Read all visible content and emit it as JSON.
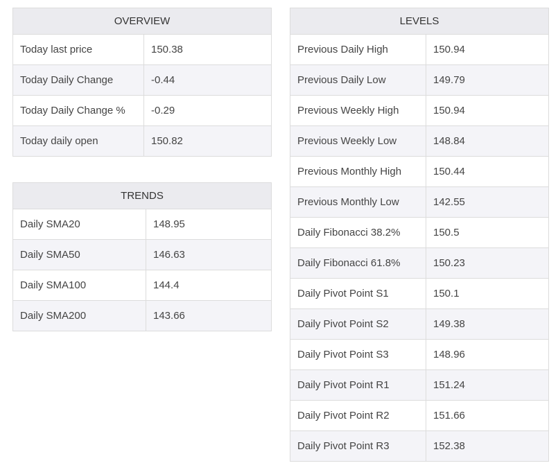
{
  "overview": {
    "title": "OVERVIEW",
    "rows": [
      {
        "label": "Today last price",
        "value": "150.38"
      },
      {
        "label": "Today Daily Change",
        "value": "-0.44"
      },
      {
        "label": "Today Daily Change %",
        "value": "-0.29"
      },
      {
        "label": "Today daily open",
        "value": "150.82"
      }
    ]
  },
  "trends": {
    "title": "TRENDS",
    "rows": [
      {
        "label": "Daily SMA20",
        "value": "148.95"
      },
      {
        "label": "Daily SMA50",
        "value": "146.63"
      },
      {
        "label": "Daily SMA100",
        "value": "144.4"
      },
      {
        "label": "Daily SMA200",
        "value": "143.66"
      }
    ]
  },
  "levels": {
    "title": "LEVELS",
    "rows": [
      {
        "label": "Previous Daily High",
        "value": "150.94"
      },
      {
        "label": "Previous Daily Low",
        "value": "149.79"
      },
      {
        "label": "Previous Weekly High",
        "value": "150.94"
      },
      {
        "label": "Previous Weekly Low",
        "value": "148.84"
      },
      {
        "label": "Previous Monthly High",
        "value": "150.44"
      },
      {
        "label": "Previous Monthly Low",
        "value": "142.55"
      },
      {
        "label": "Daily Fibonacci 38.2%",
        "value": "150.5"
      },
      {
        "label": "Daily Fibonacci 61.8%",
        "value": "150.23"
      },
      {
        "label": "Daily Pivot Point S1",
        "value": "150.1"
      },
      {
        "label": "Daily Pivot Point S2",
        "value": "149.38"
      },
      {
        "label": "Daily Pivot Point S3",
        "value": "148.96"
      },
      {
        "label": "Daily Pivot Point R1",
        "value": "151.24"
      },
      {
        "label": "Daily Pivot Point R2",
        "value": "151.66"
      },
      {
        "label": "Daily Pivot Point R3",
        "value": "152.38"
      }
    ]
  }
}
